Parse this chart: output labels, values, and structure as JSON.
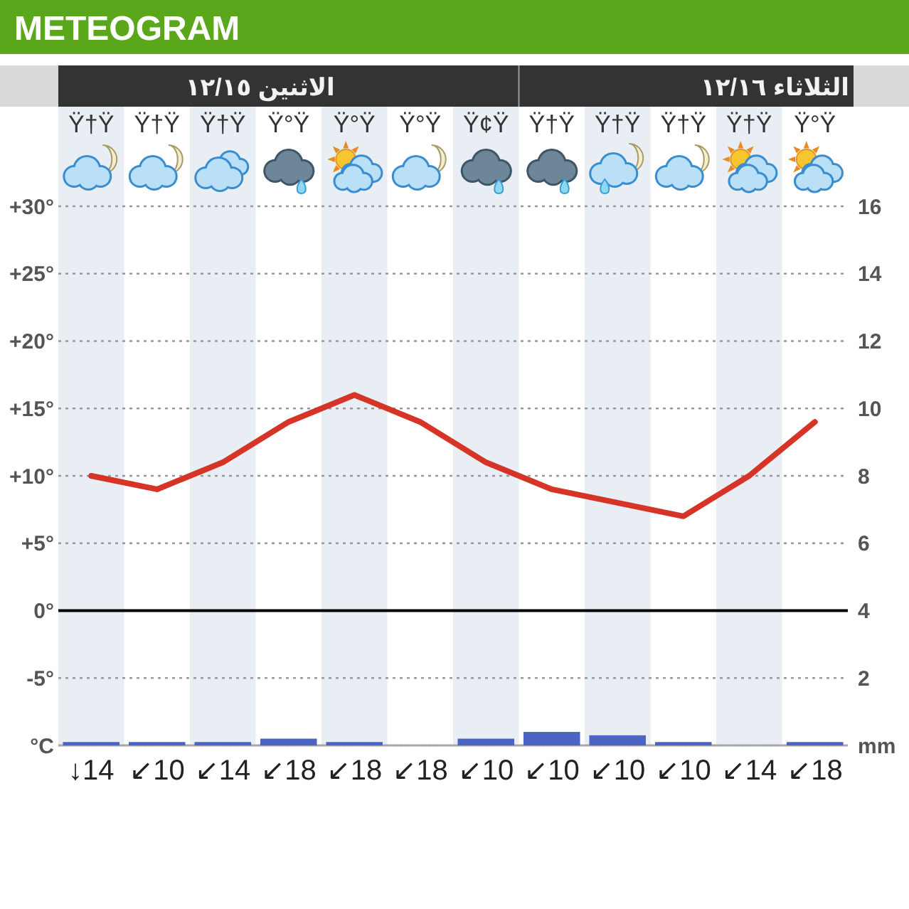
{
  "chart_data": {
    "type": "bar",
    "title": "METEOGRAM",
    "categories": [
      "Ÿ†Ÿ",
      "Ÿ†Ÿ",
      "Ÿ†Ÿ",
      "Ÿ°Ÿ",
      "Ÿ°Ÿ",
      "Ÿ°Ÿ",
      "Ÿ¢Ÿ",
      "Ÿ†Ÿ",
      "Ÿ†Ÿ",
      "Ÿ†Ÿ",
      "Ÿ†Ÿ",
      "Ÿ°Ÿ"
    ],
    "series": [
      {
        "type": "line",
        "color": "#d63426",
        "values": [
          10,
          9,
          11,
          14,
          16,
          14,
          11,
          9,
          8,
          7,
          10,
          14
        ]
      },
      {
        "axis": "y2",
        "color": "#4a63c5",
        "values": [
          0.1,
          0.1,
          0.1,
          0.2,
          0.1,
          0,
          0.2,
          0.4,
          0.3,
          0.1,
          0,
          0.1
        ]
      }
    ],
    "ylim": [
      -10,
      30
    ],
    "yticks": [
      {
        "value": 30,
        "label": "+30°"
      },
      {
        "value": 25,
        "label": "+25°"
      },
      {
        "value": 20,
        "label": "+20°"
      },
      {
        "value": 15,
        "label": "+15°"
      },
      {
        "value": 10,
        "label": "+10°"
      },
      {
        "value": 5,
        "label": "+5°"
      },
      {
        "value": 0,
        "label": "0°"
      },
      {
        "value": -5,
        "label": "-5°"
      },
      {
        "value": -10,
        "label": "°C"
      }
    ],
    "y2lim": [
      0,
      16
    ],
    "y2ticks": [
      16,
      14,
      12,
      10,
      8,
      6,
      4,
      2,
      {
        "value": 0,
        "label": "mm"
      }
    ],
    "grid": "y",
    "ref_lines": [
      {
        "axis": "y",
        "value": 0,
        "color": "#000000"
      }
    ],
    "annotations": [
      "الاثنين ١٢/١٥",
      "الثلاثاء ١٢/١٦",
      "↓14",
      "↙10",
      "↙14",
      "↙18",
      "↙18",
      "↙18",
      "↙10",
      "↙10",
      "↙10",
      "↙10",
      "↙14",
      "↙18"
    ]
  }
}
